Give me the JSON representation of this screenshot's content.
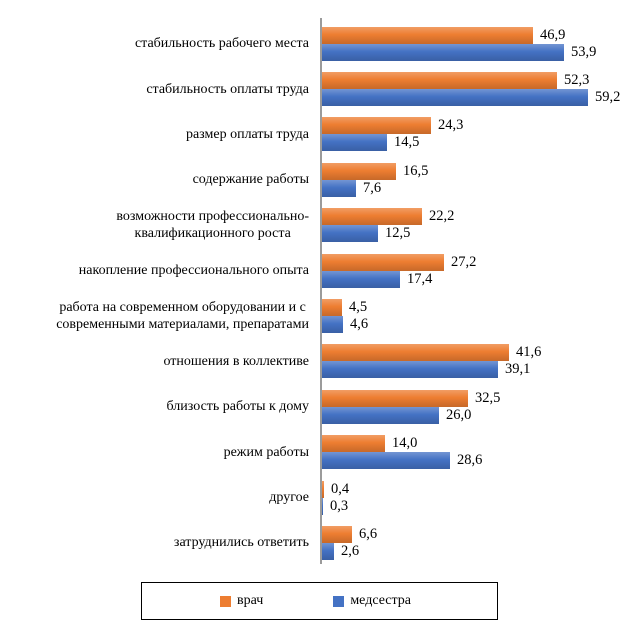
{
  "chart_data": {
    "type": "bar",
    "orientation": "horizontal",
    "title": "",
    "categories": [
      "стабильность рабочего места",
      "стабильность оплаты труда",
      "размер оплаты труда",
      "содержание работы",
      "возможности профессионально-\nквалификационного роста",
      "накопление профессионального опыта",
      "работа на современном оборудовании и с\nсовременными материалами, препаратами",
      "отношения в коллективе",
      "близость работы к дому",
      "режим работы",
      "другое",
      "затруднились ответить"
    ],
    "series": [
      {
        "name": "врач",
        "color": "#ED7D31",
        "values": [
          46.9,
          52.3,
          24.3,
          16.5,
          22.2,
          27.2,
          4.5,
          41.6,
          32.5,
          14.0,
          0.4,
          6.6
        ]
      },
      {
        "name": "медсестра",
        "color": "#4472C4",
        "values": [
          53.9,
          59.2,
          14.5,
          7.6,
          12.5,
          17.4,
          4.6,
          39.1,
          26.0,
          28.6,
          0.3,
          2.6
        ]
      }
    ],
    "xlim": [
      0,
      60
    ],
    "grid": false,
    "data_labels": true,
    "decimal_separator": ",",
    "legend_position": "bottom",
    "axis_color": "#9b9b9b"
  }
}
